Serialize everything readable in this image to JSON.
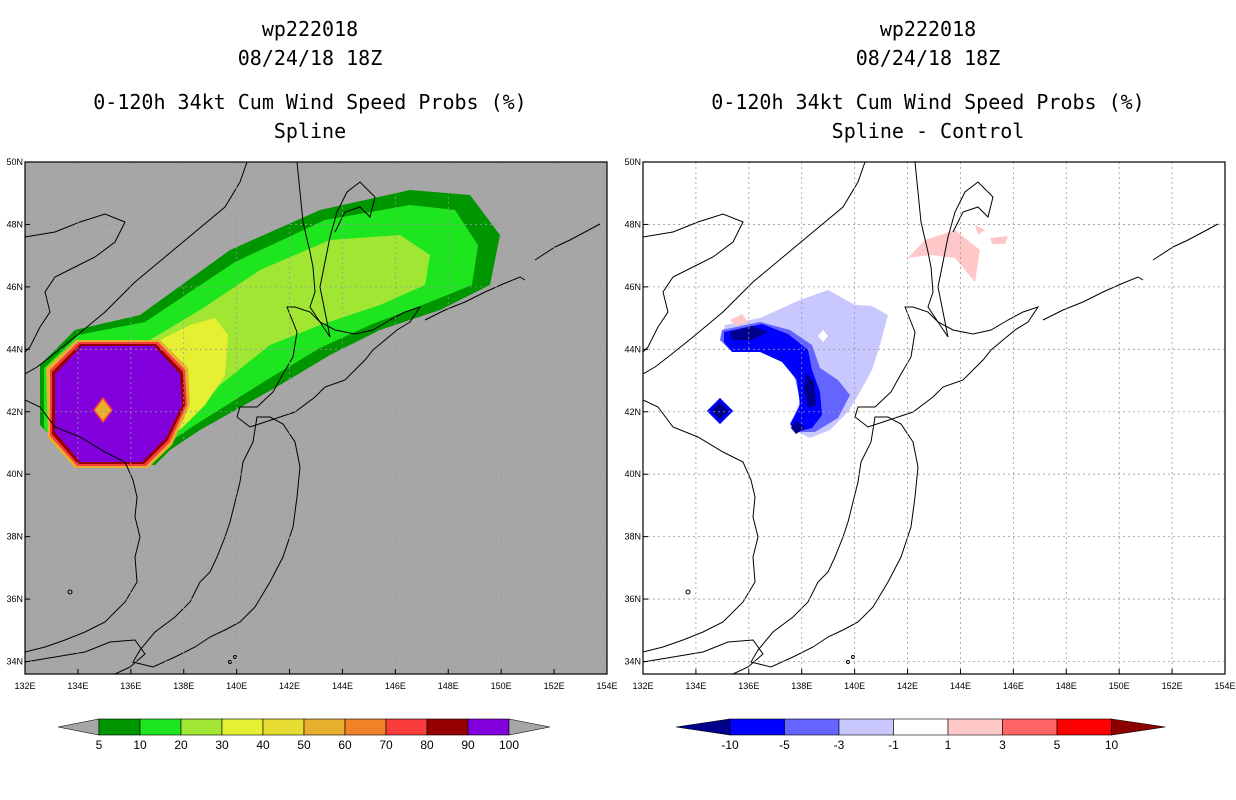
{
  "panels": [
    {
      "id": "spline",
      "title_lines": [
        "wp222018",
        "08/24/18 18Z",
        "0-120h 34kt Cum Wind Speed Probs (%)",
        "Spline"
      ],
      "background": "#a6a6a6"
    },
    {
      "id": "spline-control",
      "title_lines": [
        "wp222018",
        "08/24/18 18Z",
        "0-120h 34kt Cum Wind Speed Probs (%)",
        "Spline - Control"
      ],
      "background": "#ffffff"
    }
  ],
  "map": {
    "lon_labels": [
      "132E",
      "134E",
      "136E",
      "138E",
      "140E",
      "142E",
      "144E",
      "146E",
      "148E",
      "150E",
      "152E",
      "154E"
    ],
    "lat_labels": [
      "50N",
      "48N",
      "46N",
      "44N",
      "42N",
      "40N",
      "38N",
      "36N",
      "34N"
    ],
    "lon_range": [
      132,
      154
    ],
    "lat_range": [
      33.6,
      50
    ]
  },
  "colorbars": [
    {
      "id": "probability",
      "labels": [
        "5",
        "10",
        "20",
        "30",
        "40",
        "50",
        "60",
        "70",
        "80",
        "90",
        "100"
      ],
      "colors": [
        "#a6a6a6",
        "#009600",
        "#1ee61e",
        "#a0e632",
        "#e6f032",
        "#e6dc32",
        "#e6af2d",
        "#f08228",
        "#fa3c3c",
        "#960000",
        "#8200dc",
        "#a6a6a6"
      ]
    },
    {
      "id": "difference",
      "labels": [
        "-10",
        "-5",
        "-3",
        "-1",
        "1",
        "3",
        "5",
        "10"
      ],
      "colors": [
        "#00008c",
        "#0000ff",
        "#6464ff",
        "#c8c8ff",
        "#ffffff",
        "#ffc8c8",
        "#ff6464",
        "#ff0000",
        "#8c0000"
      ]
    }
  ]
}
